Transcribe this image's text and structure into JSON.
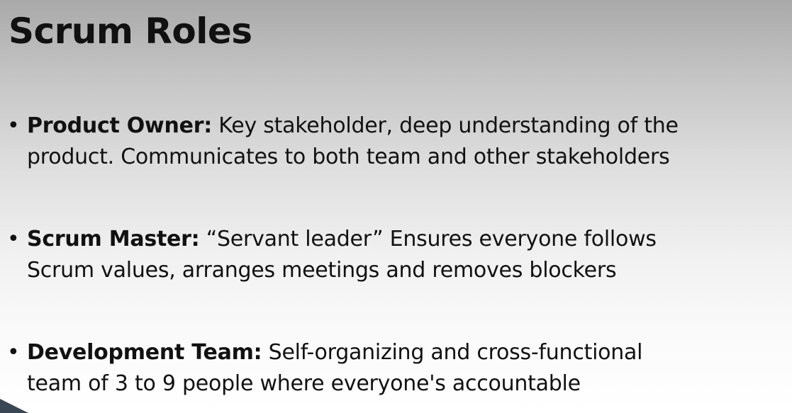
{
  "slide": {
    "title": "Scrum Roles",
    "bullet_glyph": "•",
    "bullets": [
      {
        "term": "Product Owner:",
        "line1_rest": " Key stakeholder, deep understanding of the",
        "line2": "product. Communicates to both team and other stakeholders"
      },
      {
        "term": "Scrum Master:",
        "line1_rest": " “Servant leader” Ensures everyone follows",
        "line2": "Scrum values, arranges meetings and removes blockers"
      },
      {
        "term": "Development Team:",
        "line1_rest": " Self-organizing and cross-functional",
        "line2": "team of 3 to 9 people where everyone's accountable"
      }
    ]
  },
  "colors": {
    "text": "#111111",
    "background_top": "#a9a9a9",
    "background_bottom": "#ffffff",
    "corner_accent": "#3b4654"
  }
}
